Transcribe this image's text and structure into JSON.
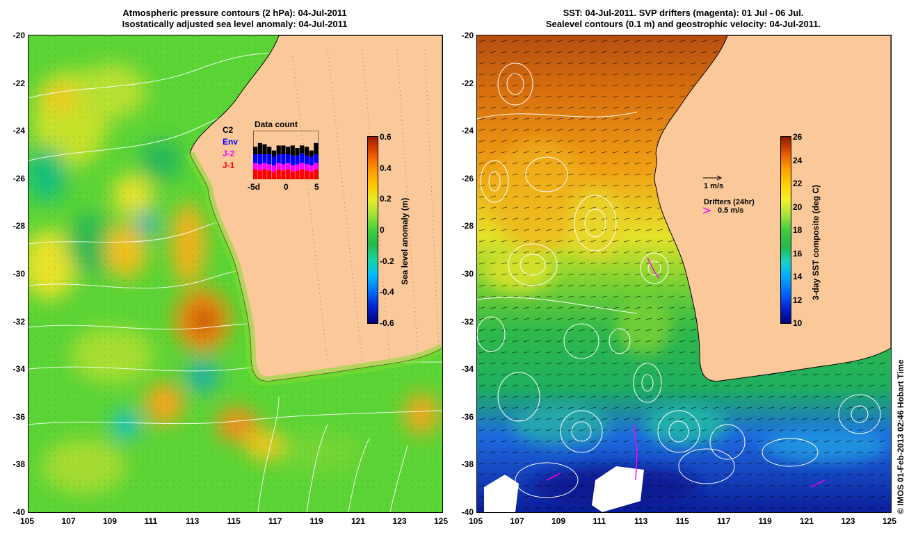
{
  "left": {
    "title_line1": "Atmospheric pressure contours (2 hPa): 04-Jul-2011",
    "title_line2": "Isostatically adjusted sea level anomaly: 04-Jul-2011",
    "colorbar": {
      "label": "Sea level anomaly (m)",
      "ticks": [
        "0.6",
        "0.4",
        "0.2",
        "0",
        "-0.2",
        "-0.4",
        "-0.6"
      ],
      "range": [
        -0.6,
        0.6
      ]
    },
    "inset": {
      "title": "Data count",
      "satellites": [
        {
          "name": "C2",
          "color": "#000000"
        },
        {
          "name": "Env",
          "color": "#0000ff"
        },
        {
          "name": "J-2",
          "color": "#ff00ff"
        },
        {
          "name": "J-1",
          "color": "#ff0000"
        }
      ],
      "ticks": [
        "-5d",
        "0",
        "5"
      ]
    }
  },
  "right": {
    "title_line1": "SST: 04-Jul-2011. SVP drifters (magenta): 01 Jul - 06 Jul.",
    "title_line2": "Sealevel contours (0.1 m) and geostrophic velocity: 04-Jul-2011.",
    "colorbar": {
      "label": "3-day SST composite (deg C)",
      "ticks": [
        "26",
        "24",
        "22",
        "20",
        "18",
        "16",
        "14",
        "12",
        "10"
      ],
      "range": [
        10,
        26
      ]
    },
    "velocity_legend": "1 m/s",
    "drifter_legend_title": "Drifters (24hr)",
    "drifter_legend_speed": "0.5 m/s"
  },
  "axes": {
    "x_ticks": [
      "105",
      "107",
      "109",
      "111",
      "113",
      "115",
      "117",
      "119",
      "121",
      "123",
      "125"
    ],
    "y_ticks": [
      "-20",
      "-22",
      "-24",
      "-26",
      "-28",
      "-30",
      "-32",
      "-34",
      "-36",
      "-38",
      "-40"
    ],
    "lon_range": [
      105,
      125
    ],
    "lat_range": [
      -40,
      -20
    ]
  },
  "credit": "© IMOS 01-Feb-2013 02:46 Hobart Time",
  "colors": {
    "land": "#fbc89a",
    "drifters": "#ff00ff"
  }
}
